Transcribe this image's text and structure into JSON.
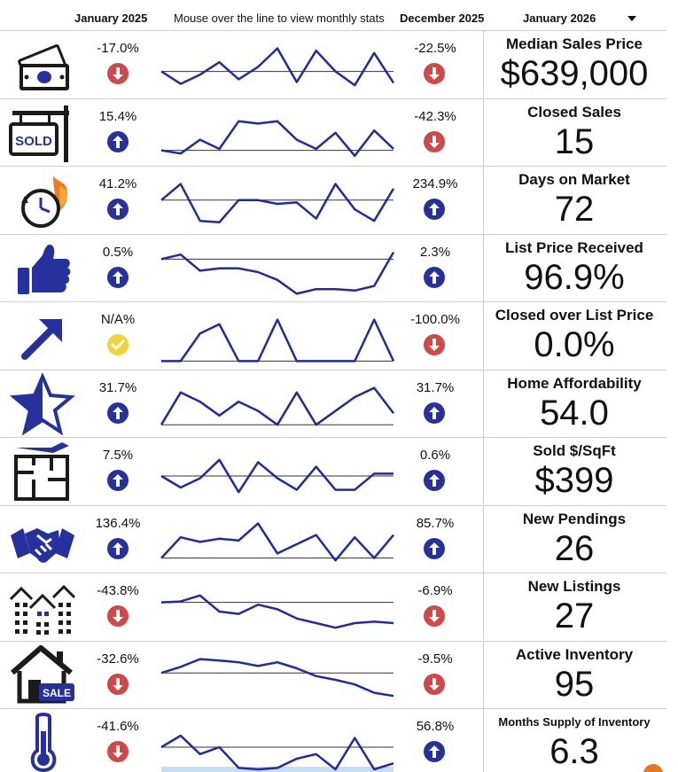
{
  "header": {
    "start_period": "January 2025",
    "instruction": "Mouse over the line to view monthly stats",
    "end_period": "December 2025",
    "selected_period": "January 2026"
  },
  "colors": {
    "up": "#27319e",
    "down": "#d24747",
    "neutral": "#f2d43a",
    "line": "#1f2aa8"
  },
  "metrics": [
    {
      "label": "Median Sales Price",
      "value": "$639,000",
      "yoy": "-17.0%",
      "yoy_dir": "down",
      "mom": "-22.5%",
      "mom_dir": "down",
      "icon": "money-icon",
      "trend": [
        0.55,
        0.82,
        0.62,
        0.35,
        0.72,
        0.45,
        0.05,
        0.78,
        0.1,
        0.55,
        0.85,
        0.15,
        0.8
      ]
    },
    {
      "label": "Closed Sales",
      "value": "15",
      "yoy": "15.4%",
      "yoy_dir": "up",
      "mom": "-42.3%",
      "mom_dir": "down",
      "icon": "sold-sign-icon",
      "trend": [
        0.78,
        0.85,
        0.55,
        0.75,
        0.15,
        0.2,
        0.15,
        0.55,
        0.75,
        0.4,
        0.9,
        0.35,
        0.75
      ]
    },
    {
      "label": "Days on Market",
      "value": "72",
      "yoy": "41.2%",
      "yoy_dir": "up",
      "mom": "234.9%",
      "mom_dir": "up",
      "icon": "clock-fire-icon",
      "trend": [
        0.4,
        0.05,
        0.85,
        0.88,
        0.4,
        0.4,
        0.48,
        0.45,
        0.8,
        0.05,
        0.6,
        0.85,
        0.15
      ]
    },
    {
      "label": "List Price Received",
      "value": "96.9%",
      "yoy": "0.5%",
      "yoy_dir": "up",
      "mom": "2.3%",
      "mom_dir": "up",
      "icon": "thumbs-up-icon",
      "trend": [
        0.2,
        0.1,
        0.45,
        0.4,
        0.4,
        0.48,
        0.65,
        0.95,
        0.85,
        0.85,
        0.88,
        0.78,
        0.05
      ]
    },
    {
      "label": "Closed over List Price",
      "value": "0.0%",
      "yoy": "N/A%",
      "yoy_dir": "neutral",
      "mom": "-100.0%",
      "mom_dir": "down",
      "icon": "diagonal-arrow-icon",
      "trend": [
        0.95,
        0.95,
        0.35,
        0.15,
        0.95,
        0.95,
        0.05,
        0.95,
        0.95,
        0.95,
        0.95,
        0.05,
        0.95
      ]
    },
    {
      "label": "Home Affordability",
      "value": "54.0",
      "yoy": "31.7%",
      "yoy_dir": "up",
      "mom": "31.7%",
      "mom_dir": "up",
      "icon": "star-icon",
      "trend": [
        0.85,
        0.15,
        0.35,
        0.65,
        0.35,
        0.55,
        0.85,
        0.15,
        0.85,
        0.55,
        0.25,
        0.05,
        0.6
      ]
    },
    {
      "label": "Sold $/SqFt",
      "value": "$399",
      "yoy": "7.5%",
      "yoy_dir": "up",
      "mom": "0.6%",
      "mom_dir": "up",
      "icon": "floor-plan-icon",
      "trend": [
        0.5,
        0.75,
        0.55,
        0.15,
        0.85,
        0.2,
        0.55,
        0.8,
        0.3,
        0.8,
        0.8,
        0.45,
        0.45
      ]
    },
    {
      "label": "New Pendings",
      "value": "26",
      "yoy": "136.4%",
      "yoy_dir": "up",
      "mom": "85.7%",
      "mom_dir": "up",
      "icon": "handshake-icon",
      "trend": [
        0.8,
        0.35,
        0.45,
        0.38,
        0.42,
        0.05,
        0.7,
        0.5,
        0.3,
        0.85,
        0.35,
        0.8,
        0.3
      ]
    },
    {
      "label": "New Listings",
      "value": "27",
      "yoy": "-43.8%",
      "yoy_dir": "down",
      "mom": "-6.9%",
      "mom_dir": "down",
      "icon": "houses-icon",
      "trend": [
        0.3,
        0.28,
        0.15,
        0.5,
        0.55,
        0.35,
        0.45,
        0.65,
        0.75,
        0.85,
        0.75,
        0.72,
        0.75
      ]
    },
    {
      "label": "Active Inventory",
      "value": "95",
      "yoy": "-32.6%",
      "yoy_dir": "down",
      "mom": "-9.5%",
      "mom_dir": "down",
      "icon": "house-sale-icon",
      "trend": [
        0.35,
        0.22,
        0.05,
        0.08,
        0.12,
        0.2,
        0.12,
        0.25,
        0.42,
        0.5,
        0.6,
        0.78,
        0.85
      ]
    },
    {
      "label": "Months Supply of Inventory",
      "value": "6.3",
      "yoy": "-41.6%",
      "yoy_dir": "down",
      "mom": "56.8%",
      "mom_dir": "up",
      "icon": "thermometer-icon",
      "trend": [
        0.5,
        0.25,
        0.65,
        0.5,
        0.95,
        0.98,
        0.95,
        0.75,
        0.65,
        0.98,
        0.3,
        0.98,
        0.85
      ]
    }
  ]
}
